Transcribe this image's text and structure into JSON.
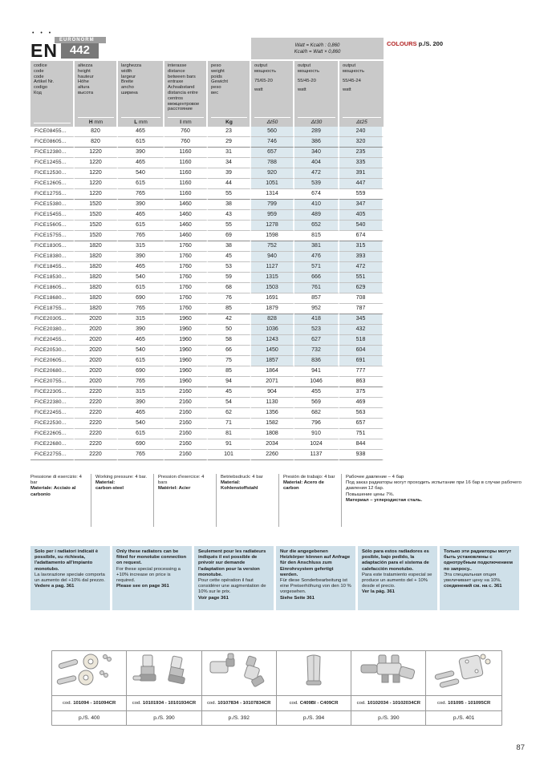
{
  "logo": {
    "dots": "• • •",
    "en": "EN",
    "norm": "EURONORM",
    "number": "442"
  },
  "conversion": {
    "line1": "Watt = Kcal/h : 0,860",
    "line2": "Kcal/h = Watt × 0,860"
  },
  "colours": {
    "label": "COLOURS",
    "page_ref": "p./S. 200",
    "accent_color": "#b22222"
  },
  "page": {
    "number": "87"
  },
  "style_colors": {
    "header_gray": "#c9c9c9",
    "highlight_blue": "#dce8ee",
    "box_blue": "#cfe0e9"
  },
  "table": {
    "headers": [
      {
        "lines": [
          "codice",
          "code",
          "code",
          "Artikel Nr.",
          "codigo",
          "Код"
        ],
        "unit": ""
      },
      {
        "lines": [
          "altezza",
          "height",
          "hauteur",
          "Höhe",
          "altura",
          "высота"
        ],
        "unit": "H mm"
      },
      {
        "lines": [
          "larghezza",
          "width",
          "largeur",
          "Breite",
          "ancho",
          "ширина"
        ],
        "unit": "L mm"
      },
      {
        "lines": [
          "interasse",
          "distance",
          "between bars",
          "entraxe",
          "Achsabstand",
          "distancia entre",
          "centros",
          "межцентровое",
          "расстояние"
        ],
        "unit": "I mm"
      },
      {
        "lines": [
          "peso",
          "weight",
          "poids",
          "Gewicht",
          "peso",
          "вес"
        ],
        "unit": "Kg"
      },
      {
        "lines": [
          "output",
          "мощность",
          "",
          "75/65-20",
          "",
          "watt"
        ],
        "unit": "Δt50"
      },
      {
        "lines": [
          "output",
          "мощность",
          "",
          "55/45-20",
          "",
          "watt"
        ],
        "unit": "Δt30"
      },
      {
        "lines": [
          "output",
          "мощность",
          "",
          "55/45-24",
          "",
          "watt"
        ],
        "unit": "Δt25"
      }
    ],
    "rows": [
      [
        "FICE08455…",
        "820",
        "465",
        "760",
        "23",
        "560",
        "289",
        "240",
        1,
        0
      ],
      [
        "FICE08605…",
        "820",
        "615",
        "760",
        "29",
        "746",
        "386",
        "320",
        1,
        1
      ],
      [
        "FICE12380…",
        "1220",
        "390",
        "1160",
        "31",
        "657",
        "340",
        "235",
        1,
        0
      ],
      [
        "FICE12455…",
        "1220",
        "465",
        "1160",
        "34",
        "788",
        "404",
        "335",
        1,
        0
      ],
      [
        "FICE12530…",
        "1220",
        "540",
        "1160",
        "39",
        "920",
        "472",
        "391",
        1,
        0
      ],
      [
        "FICE12605…",
        "1220",
        "615",
        "1160",
        "44",
        "1051",
        "539",
        "447",
        1,
        0
      ],
      [
        "FICE12755…",
        "1220",
        "765",
        "1160",
        "55",
        "1314",
        "674",
        "559",
        0,
        1
      ],
      [
        "FICE15380…",
        "1520",
        "390",
        "1460",
        "38",
        "799",
        "410",
        "347",
        1,
        0
      ],
      [
        "FICE15455…",
        "1520",
        "465",
        "1460",
        "43",
        "959",
        "489",
        "405",
        1,
        0
      ],
      [
        "FICE15605…",
        "1520",
        "615",
        "1460",
        "55",
        "1278",
        "652",
        "540",
        1,
        0
      ],
      [
        "FICE15755…",
        "1520",
        "765",
        "1460",
        "69",
        "1598",
        "815",
        "674",
        0,
        1
      ],
      [
        "FICE18305…",
        "1820",
        "315",
        "1760",
        "38",
        "752",
        "381",
        "315",
        1,
        0
      ],
      [
        "FICE18380…",
        "1820",
        "390",
        "1760",
        "45",
        "940",
        "476",
        "393",
        1,
        0
      ],
      [
        "FICE18455…",
        "1820",
        "465",
        "1760",
        "53",
        "1127",
        "571",
        "472",
        1,
        0
      ],
      [
        "FICE18530…",
        "1820",
        "540",
        "1760",
        "59",
        "1315",
        "666",
        "551",
        1,
        0
      ],
      [
        "FICE18605…",
        "1820",
        "615",
        "1760",
        "68",
        "1503",
        "761",
        "629",
        1,
        0
      ],
      [
        "FICE18680…",
        "1820",
        "690",
        "1760",
        "76",
        "1691",
        "857",
        "708",
        0,
        0
      ],
      [
        "FICE18755…",
        "1820",
        "765",
        "1760",
        "85",
        "1879",
        "952",
        "787",
        0,
        1
      ],
      [
        "FICE20305…",
        "2020",
        "315",
        "1960",
        "42",
        "828",
        "418",
        "345",
        1,
        0
      ],
      [
        "FICE20380…",
        "2020",
        "390",
        "1960",
        "50",
        "1036",
        "523",
        "432",
        1,
        0
      ],
      [
        "FICE20455…",
        "2020",
        "465",
        "1960",
        "58",
        "1243",
        "627",
        "518",
        1,
        0
      ],
      [
        "FICE20530…",
        "2020",
        "540",
        "1960",
        "66",
        "1450",
        "732",
        "604",
        1,
        0
      ],
      [
        "FICE20605…",
        "2020",
        "615",
        "1960",
        "75",
        "1857",
        "836",
        "691",
        1,
        0
      ],
      [
        "FICE20680…",
        "2020",
        "690",
        "1960",
        "85",
        "1864",
        "941",
        "777",
        0,
        0
      ],
      [
        "FICE20755…",
        "2020",
        "765",
        "1960",
        "94",
        "2071",
        "1046",
        "863",
        0,
        1
      ],
      [
        "FICE22305…",
        "2220",
        "315",
        "2160",
        "45",
        "904",
        "455",
        "375",
        0,
        0
      ],
      [
        "FICE22380…",
        "2220",
        "390",
        "2160",
        "54",
        "1130",
        "569",
        "469",
        0,
        0
      ],
      [
        "FICE22455…",
        "2220",
        "465",
        "2160",
        "62",
        "1356",
        "682",
        "563",
        0,
        0
      ],
      [
        "FICE22530…",
        "2220",
        "540",
        "2160",
        "71",
        "1582",
        "796",
        "657",
        0,
        0
      ],
      [
        "FICE22605…",
        "2220",
        "615",
        "2160",
        "81",
        "1808",
        "910",
        "751",
        0,
        0
      ],
      [
        "FICE22680…",
        "2220",
        "690",
        "2160",
        "91",
        "2034",
        "1024",
        "844",
        0,
        0
      ],
      [
        "FICE22755…",
        "2220",
        "765",
        "2160",
        "101",
        "2260",
        "1137",
        "938",
        0,
        1
      ]
    ]
  },
  "material_notes": [
    {
      "lines": [
        {
          "text": "Pressione di esercizio: 4 bar",
          "bold": 0
        },
        {
          "text": "Materiale: Acciaio al carbonio",
          "bold": 1
        }
      ]
    },
    {
      "lines": [
        {
          "text": "Working pressure: 4 bar.",
          "bold": 0
        },
        {
          "text": "Material:",
          "bold": 1
        },
        {
          "text": "carbon-steel",
          "bold": 1
        }
      ]
    },
    {
      "lines": [
        {
          "text": "Pression d'exercice: 4 bars",
          "bold": 0
        },
        {
          "text": "Matériel: Acier",
          "bold": 1
        }
      ]
    },
    {
      "lines": [
        {
          "text": "Betriebsdruck: 4 bar",
          "bold": 0
        },
        {
          "text": "Material: Kohlenstoffstahl",
          "bold": 1
        }
      ]
    },
    {
      "lines": [
        {
          "text": "Presión de trabajo: 4 bar",
          "bold": 0
        },
        {
          "text": "Material: Acero de carbon",
          "bold": 1
        }
      ]
    },
    {
      "lines": [
        {
          "text": "Рабочее давление – 4 бар",
          "bold": 0
        },
        {
          "text": "Под заказ радиаторы могут проходить испытание при 16 бар в случае рабочего давления 12 бар.",
          "bold": 0
        },
        {
          "text": "Повышение цены 7%.",
          "bold": 0
        },
        {
          "text": "Материал – углеродистая сталь.",
          "bold": 1
        }
      ]
    }
  ],
  "info_boxes": [
    {
      "title": "Solo per i radiatori indicati è possibile, su richiesta, l'adattamento all'impianto monotubo.",
      "body": "La lavorazione speciale comporta un aumento del +10% dal prezzo.",
      "footer": "Vedere a pag. 361"
    },
    {
      "title": "Only these radiators can be fitted for monotube connection on request.",
      "body": "For these special processing a +10% increase on price is required.",
      "footer": "Please see on page 361"
    },
    {
      "title": "Seulement pour les radiateurs indiqués il est possible de prévoir sur demande l'adaptation pour la version monotube.",
      "body": "Pour cette opération il faut considérer une augmentation de 10% sur le prix.",
      "footer": "Voir page 361"
    },
    {
      "title": "Nur die angegebenen Heizkörper können auf Anfrage für den Anschluss zum Einrohrsystem gefertigt werden.",
      "body": "Für diese Sonderbearbeitung ist eine Preiserhöhung von den 10 % vorgesehen.",
      "footer": "Siehe Seite 361"
    },
    {
      "title": "Sólo para estos radiadores es posible, bajo pedido, la adaptación para el sistema de calefacción monotubo.",
      "body": "Para este tratamiento especial se produce un aumento del + 10% desde el precio.",
      "footer": "Ver la pág. 361"
    },
    {
      "title": "Только эти радиаторы могут быть установлены с однотрубным подключением по запросу..",
      "body": "Эта специальная опция увеличивает цену на 10%.",
      "footer": "соединений см. на с. 361"
    }
  ],
  "products": {
    "cod_label": "cod.",
    "items": [
      {
        "code": "101094 - 101094CR",
        "page": "p./S. 400",
        "icon": "wall-bushes-icon"
      },
      {
        "code": "10101934 - 10101934CR",
        "page": "p./S. 390",
        "icon": "angle-valves-icon"
      },
      {
        "code": "10107834 - 10107834CR",
        "page": "p./S. 392",
        "icon": "corner-valves-icon"
      },
      {
        "code": "C409BI - C409CR",
        "page": "p./S. 394",
        "icon": "thermostatic-head-icon"
      },
      {
        "code": "10102034 - 10102034CR",
        "page": "p./S. 390",
        "icon": "twin-valve-icon"
      },
      {
        "code": "101095 - 101095CR",
        "page": "p./S. 401",
        "icon": "wall-plate-icon"
      }
    ]
  }
}
